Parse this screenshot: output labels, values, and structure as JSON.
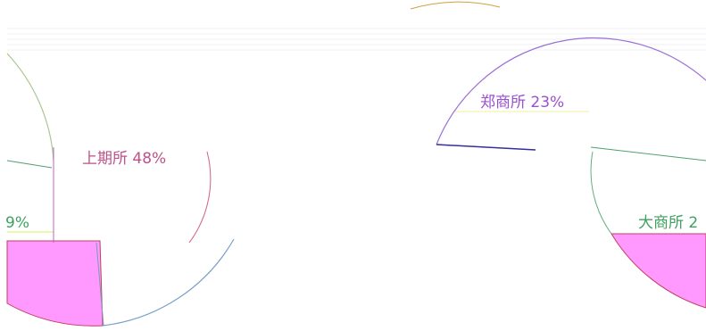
{
  "labels": [
    {
      "text": "上期所 48%"
    },
    {
      "text": "9%"
    },
    {
      "text": "郑商所 23%"
    },
    {
      "text": "大商所 2"
    }
  ]
}
